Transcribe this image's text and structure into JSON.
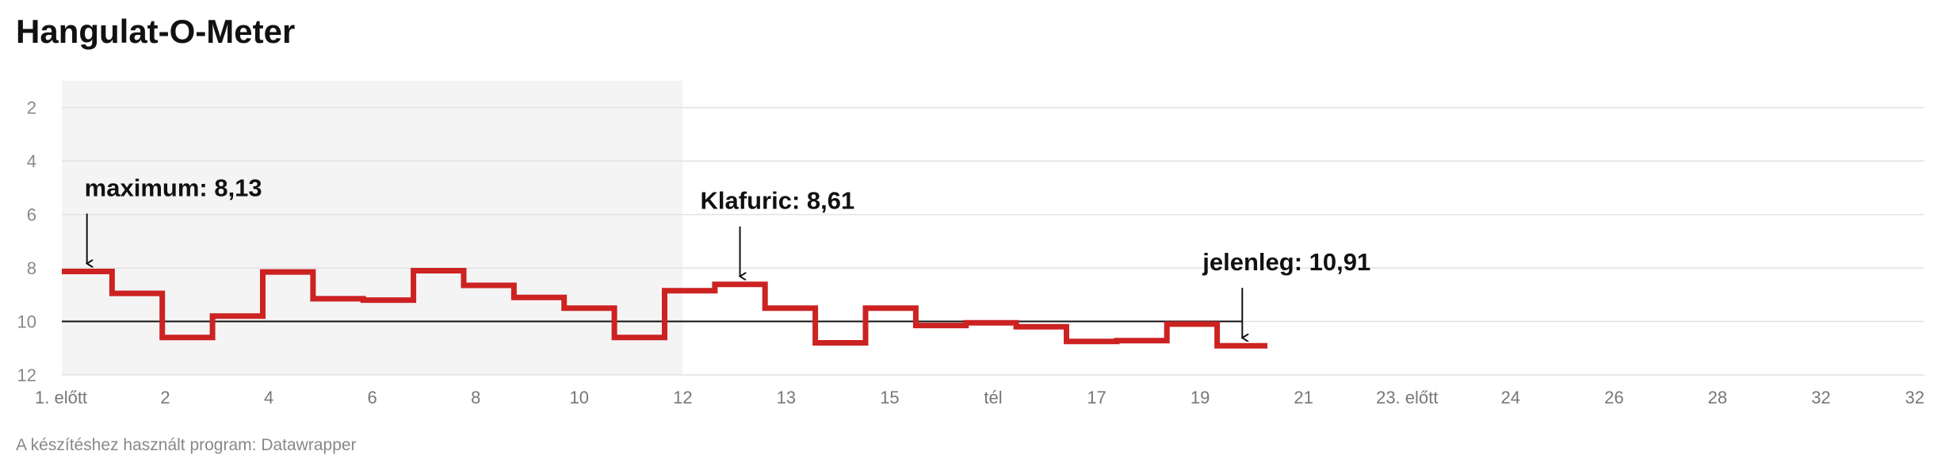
{
  "title": "Hangulat-O-Meter",
  "footer": "A készítéshez használt program: Datawrapper",
  "colors": {
    "line": "#cc2222",
    "reference": "#111111",
    "shade": "#f4f4f4",
    "grid": "#e2e2e2"
  },
  "chart_data": {
    "type": "line",
    "step": true,
    "title": "Hangulat-O-Meter",
    "xlabel": "",
    "ylabel": "",
    "y_reversed": true,
    "ylim": [
      12,
      1
    ],
    "yticks": [
      2,
      4,
      6,
      8,
      10,
      12
    ],
    "grid": true,
    "xticks": [
      "1. előtt",
      "2",
      "4",
      "6",
      "8",
      "10",
      "12",
      "13",
      "15",
      "tél",
      "17",
      "19",
      "21",
      "23. előtt",
      "24",
      "26",
      "28",
      "32",
      "32"
    ],
    "shaded_range": [
      "1. előtt",
      "12"
    ],
    "reference_line": 10,
    "series": [
      {
        "values": [
          8.13,
          8.95,
          10.6,
          9.8,
          8.15,
          9.15,
          9.2,
          8.1,
          8.65,
          9.1,
          9.5,
          10.6,
          8.85,
          8.61,
          9.5,
          10.8,
          9.5,
          10.15,
          10.05,
          10.2,
          10.75,
          10.72,
          10.1,
          10.91
        ]
      }
    ],
    "annotations": [
      {
        "text": "maximum: 8,13",
        "point_index": 0
      },
      {
        "text": "Klafuric: 8,61",
        "point_index": 13
      },
      {
        "text": "jelenleg: 10,91",
        "point_index": 23
      }
    ]
  }
}
